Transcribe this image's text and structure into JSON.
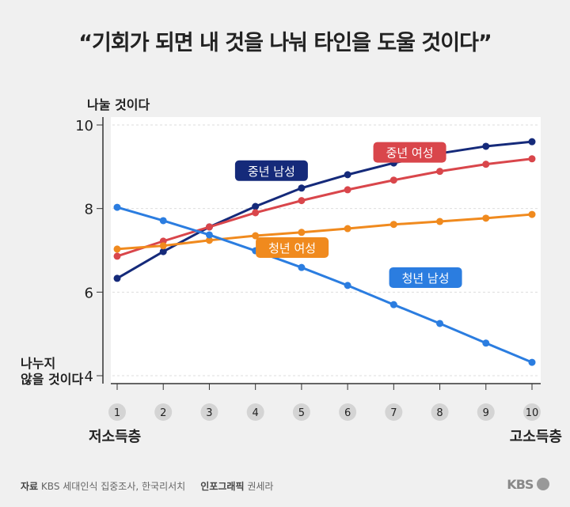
{
  "title": "“기회가 되면 내 것을 나눠 타인을 도울 것이다”",
  "chart_data": {
    "type": "line",
    "title": "“기회가 되면 내 것을 나눠 타인을 도울 것이다”",
    "x": [
      1,
      2,
      3,
      4,
      5,
      6,
      7,
      8,
      9,
      10
    ],
    "x_ticks": [
      "1",
      "2",
      "3",
      "4",
      "5",
      "6",
      "7",
      "8",
      "9",
      "10"
    ],
    "x_low_label": "저소득층",
    "x_high_label": "고소득층",
    "y_ticks": [
      "4",
      "6",
      "8",
      "10"
    ],
    "y_top_label": "나눌 것이다",
    "y_bottom_label": "나누지 않을 것이다",
    "ylim": [
      4,
      10
    ],
    "grid": true,
    "series": [
      {
        "name": "중년 남성",
        "color": "#152a7a",
        "values": [
          6.33,
          6.97,
          7.56,
          8.05,
          8.49,
          8.81,
          9.09,
          9.32,
          9.49,
          9.6
        ]
      },
      {
        "name": "중년 여성",
        "color": "#d9464b",
        "values": [
          6.86,
          7.22,
          7.56,
          7.9,
          8.19,
          8.45,
          8.68,
          8.89,
          9.06,
          9.19
        ]
      },
      {
        "name": "청년 여성",
        "color": "#f08a1e",
        "values": [
          7.03,
          7.11,
          7.24,
          7.35,
          7.43,
          7.52,
          7.62,
          7.69,
          7.77,
          7.86
        ]
      },
      {
        "name": "청년 남성",
        "color": "#2b7de0",
        "values": [
          8.03,
          7.71,
          7.37,
          6.99,
          6.59,
          6.16,
          5.7,
          5.25,
          4.78,
          4.32
        ]
      }
    ]
  },
  "footer": {
    "source_label": "자료",
    "source": "KBS 세대인식 집중조사, 한국리서치",
    "graphic_label": "인포그래픽",
    "graphic": "권세라",
    "logo": "KBS"
  }
}
